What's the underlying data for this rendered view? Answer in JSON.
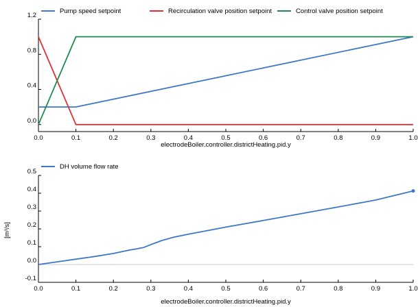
{
  "chart_data": [
    {
      "type": "line",
      "title": "",
      "xlabel": "electrodeBoiler.controller.districtHeating.pid.y",
      "ylabel": "",
      "xlim": [
        0,
        1
      ],
      "ylim": [
        -0.08,
        1.2
      ],
      "grid": false,
      "legend_position": "top",
      "x_ticks": [
        "0.0",
        "0.1",
        "0.2",
        "0.3",
        "0.4",
        "0.5",
        "0.6",
        "0.7",
        "0.8",
        "0.9",
        "1.0"
      ],
      "y_ticks": [
        "0.0",
        "0.4",
        "0.8",
        "1.2"
      ],
      "y_tick_values": [
        0.0,
        0.4,
        0.8,
        1.2
      ],
      "series": [
        {
          "name": "Pump speed setpoint",
          "color": "#3c78c6",
          "x": [
            0.0,
            0.1,
            1.0
          ],
          "y": [
            0.2,
            0.2,
            1.0
          ]
        },
        {
          "name": "Recirculation valve position setpoint",
          "color": "#e03030",
          "x": [
            0.0,
            0.1,
            1.0
          ],
          "y": [
            1.0,
            0.0,
            0.0
          ]
        },
        {
          "name": "Control valve position setpoint",
          "color": "#1f8a50",
          "x": [
            0.0,
            0.1,
            1.0
          ],
          "y": [
            0.0,
            1.0,
            1.0
          ]
        }
      ]
    },
    {
      "type": "line",
      "title": "",
      "xlabel": "electrodeBoiler.controller.districtHeating.pid.y",
      "ylabel": "[m³/s]",
      "xlim": [
        0,
        1
      ],
      "ylim": [
        -0.1,
        0.5
      ],
      "grid": false,
      "legend_position": "top",
      "x_ticks": [
        "0.0",
        "0.1",
        "0.2",
        "0.3",
        "0.4",
        "0.5",
        "0.6",
        "0.7",
        "0.8",
        "0.9",
        "1.0"
      ],
      "y_ticks": [
        "-0.1",
        "0.0",
        "0.1",
        "0.2",
        "0.3",
        "0.4",
        "0.5"
      ],
      "y_tick_values": [
        -0.1,
        0.0,
        0.1,
        0.2,
        0.3,
        0.4,
        0.5
      ],
      "zero_line": true,
      "series": [
        {
          "name": "DH volume flow rate",
          "color": "#3c78c6",
          "x": [
            0.0,
            0.05,
            0.1,
            0.15,
            0.2,
            0.24,
            0.26,
            0.28,
            0.3,
            0.33,
            0.36,
            0.4,
            0.45,
            0.5,
            0.6,
            0.7,
            0.8,
            0.9,
            1.0
          ],
          "y": [
            0.0,
            0.015,
            0.03,
            0.045,
            0.062,
            0.08,
            0.087,
            0.095,
            0.112,
            0.135,
            0.153,
            0.17,
            0.19,
            0.21,
            0.247,
            0.285,
            0.323,
            0.362,
            0.413
          ]
        }
      ]
    }
  ]
}
